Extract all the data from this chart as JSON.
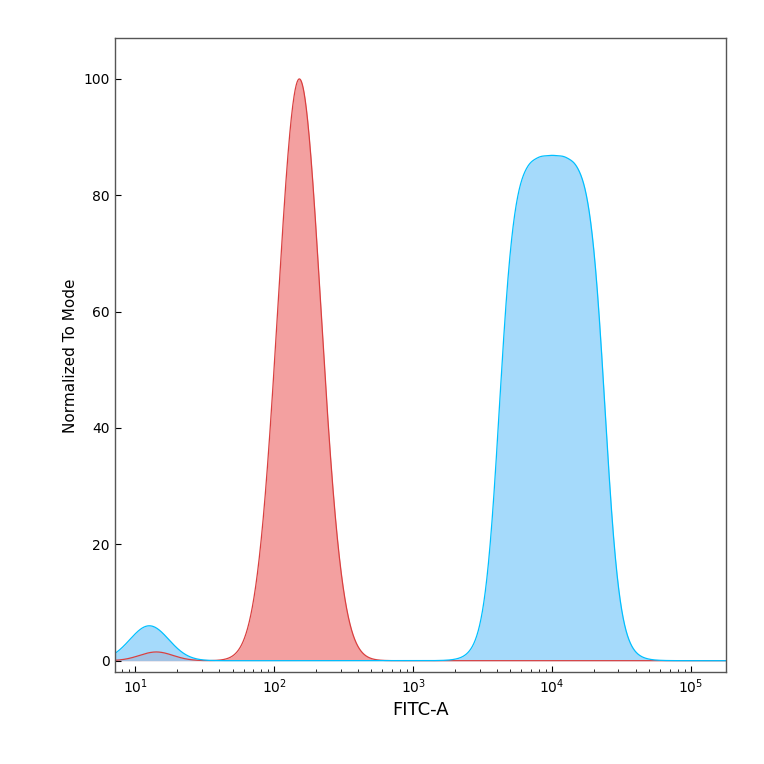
{
  "xlabel": "FITC-A",
  "ylabel": "Normalized To Mode",
  "xlim_log": [
    0.9,
    5.3
  ],
  "ylim": [
    -2,
    107
  ],
  "yticks": [
    0,
    20,
    40,
    60,
    80,
    100
  ],
  "xticks_log": [
    1,
    2,
    3,
    4,
    5
  ],
  "red_fill_color": "#F08080",
  "red_line_color": "#D94040",
  "blue_fill_color": "#87CEFA",
  "blue_line_color": "#00BFFF",
  "background_color": "#ffffff",
  "axes_bg_color": "#ffffff",
  "fig_size": [
    7.64,
    7.64
  ],
  "dpi": 100
}
